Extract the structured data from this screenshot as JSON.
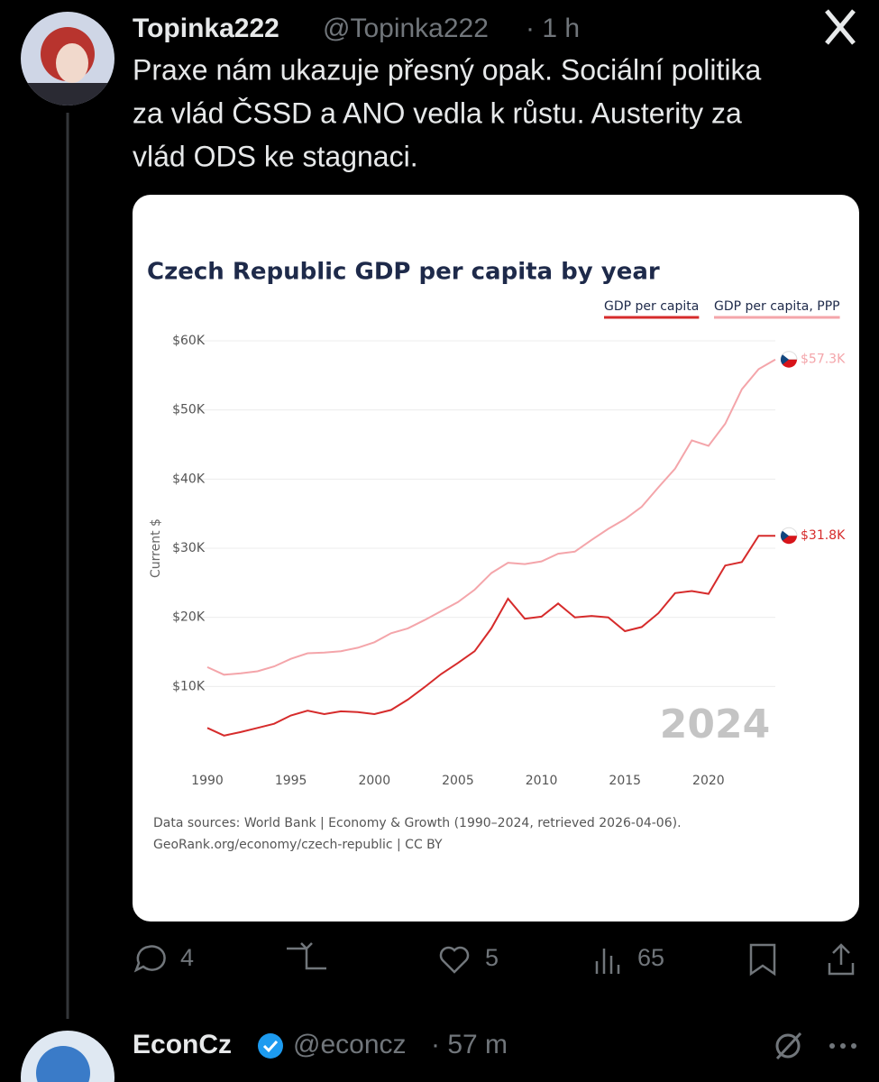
{
  "tweet": {
    "name": "Topinka222",
    "handle": "@Topinka222",
    "time": "· 1 h",
    "text_lines": [
      "Praxe nám ukazuje přesný opak. Sociální politika",
      "za vlád ČSSD a ANO vedla k růstu. Austerity za",
      "vlád ODS ke stagnaci."
    ],
    "replies": "4",
    "likes": "5",
    "views": "65"
  },
  "next_tweet": {
    "name": "EconCz",
    "handle": "@econcz",
    "time": "· 57 m"
  },
  "chart_data": {
    "type": "line",
    "title": "Czech Republic GDP per capita by year",
    "y_label": "Current $",
    "watermark": "2024",
    "source_lines": [
      "Data sources: World Bank | Economy & Growth (1990–2024, retrieved 2026-04-06).",
      "GeoRank.org/economy/czech-republic | CC BY"
    ],
    "x": [
      1990,
      1991,
      1992,
      1993,
      1994,
      1995,
      1996,
      1997,
      1998,
      1999,
      2000,
      2001,
      2002,
      2003,
      2004,
      2005,
      2006,
      2007,
      2008,
      2009,
      2010,
      2011,
      2012,
      2013,
      2014,
      2015,
      2016,
      2017,
      2018,
      2019,
      2020,
      2021,
      2022,
      2023,
      2024
    ],
    "xlim": [
      1990,
      2024
    ],
    "xticks": [
      1990,
      1995,
      2000,
      2005,
      2010,
      2015,
      2020
    ],
    "ylim": [
      0,
      60000
    ],
    "yticks": [
      {
        "value": 10000,
        "label": "$10K"
      },
      {
        "value": 20000,
        "label": "$20K"
      },
      {
        "value": 30000,
        "label": "$30K"
      },
      {
        "value": 40000,
        "label": "$40K"
      },
      {
        "value": 50000,
        "label": "$50K"
      },
      {
        "value": 60000,
        "label": "$60K"
      }
    ],
    "grid": true,
    "series": [
      {
        "name": "GDP per capita",
        "color": "#d62b2b",
        "values": [
          4000,
          2900,
          3400,
          4000,
          4600,
          5800,
          6500,
          6000,
          6400,
          6300,
          6000,
          6600,
          8100,
          9900,
          11800,
          13400,
          15100,
          18400,
          22700,
          19800,
          20100,
          22000,
          20000,
          20200,
          20000,
          18000,
          18600,
          20600,
          23500,
          23800,
          23400,
          27500,
          28000,
          31800,
          31800
        ],
        "value_labels": [
          null,
          null,
          null,
          null,
          null,
          null,
          null,
          null,
          null,
          null,
          null,
          null,
          null,
          null,
          null,
          null,
          null,
          null,
          null,
          null,
          null,
          null,
          null,
          null,
          null,
          null,
          null,
          null,
          null,
          null,
          null,
          null,
          null,
          null,
          "$31.8K"
        ]
      },
      {
        "name": "GDP per capita, PPP",
        "color": "#f4a5aa",
        "values": [
          12800,
          11700,
          11900,
          12200,
          12900,
          14000,
          14800,
          14900,
          15100,
          15600,
          16400,
          17700,
          18400,
          19600,
          20900,
          22200,
          24000,
          26400,
          27900,
          27700,
          28100,
          29200,
          29500,
          31200,
          32800,
          34200,
          36000,
          38800,
          41500,
          45600,
          44800,
          48000,
          53000,
          55900,
          57300
        ],
        "value_labels": [
          null,
          null,
          null,
          null,
          null,
          null,
          null,
          null,
          null,
          null,
          null,
          null,
          null,
          null,
          null,
          null,
          null,
          null,
          null,
          null,
          null,
          null,
          null,
          null,
          null,
          null,
          null,
          null,
          null,
          null,
          null,
          null,
          null,
          null,
          "$57.3K"
        ]
      }
    ]
  }
}
